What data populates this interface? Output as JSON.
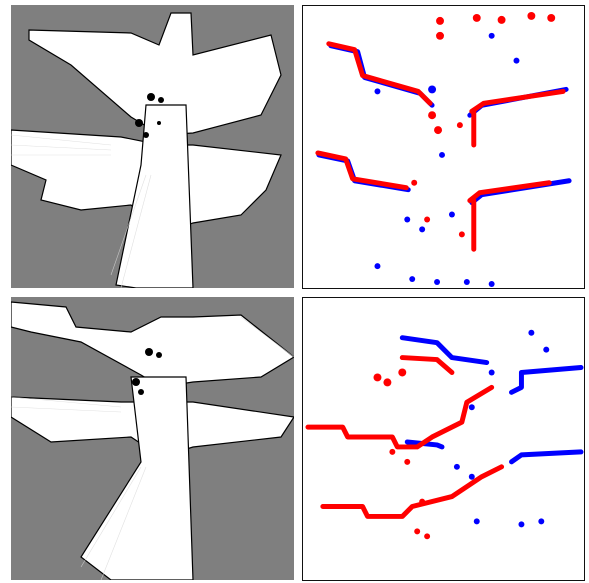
{
  "figure": {
    "panels": [
      {
        "kind": "occupancy-grid-map",
        "row": 1
      },
      {
        "kind": "scan-alignment-plot",
        "row": 1
      },
      {
        "kind": "occupancy-grid-map",
        "row": 2
      },
      {
        "kind": "scan-alignment-plot",
        "row": 2
      }
    ]
  },
  "colors": {
    "unknown_space": "#7f7f7f",
    "free_space": "#ffffff",
    "obstacle": "#000000",
    "scan_red": "#ff0000",
    "scan_blue": "#0000ff",
    "panel_border": "#111111"
  }
}
